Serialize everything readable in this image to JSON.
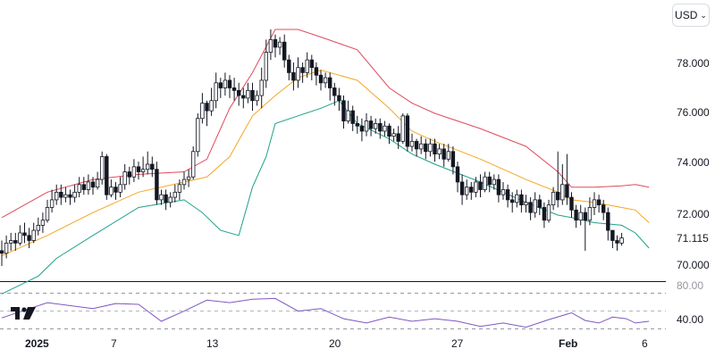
{
  "currency": {
    "label": "USD",
    "chevron_icon": "chevron-down-icon"
  },
  "logo": {
    "name": "tradingview-logo-icon"
  },
  "price_axis": {
    "ticks": [
      "78.000",
      "76.000",
      "74.000",
      "72.000",
      "70.000"
    ],
    "last_price": "71.115"
  },
  "rsi_axis": {
    "ticks": [
      "80.00",
      "40.00"
    ]
  },
  "time_axis": {
    "labels": [
      "2025",
      "7",
      "13",
      "20",
      "27",
      "Feb",
      "6"
    ]
  },
  "colors": {
    "up_candle": "#ffffff",
    "down_candle": "#131722",
    "upper_band": "#e04a5a",
    "middle_band": "#f5a623",
    "lower_band": "#1fa08a",
    "rsi_line": "#7e57c2",
    "axis_text": "#131722"
  },
  "chart_data": {
    "type": "candlestick",
    "price_range": [
      69.5,
      79.5
    ],
    "rsi_range": [
      30,
      90
    ],
    "candles": [
      [
        70.6,
        70.5,
        70.0,
        71.0
      ],
      [
        70.5,
        70.9,
        70.3,
        71.2
      ],
      [
        70.9,
        71.0,
        70.6,
        71.3
      ],
      [
        71.0,
        70.9,
        70.6,
        71.3
      ],
      [
        70.9,
        71.3,
        70.8,
        71.6
      ],
      [
        71.3,
        71.2,
        70.9,
        71.7
      ],
      [
        71.2,
        71.0,
        70.7,
        71.5
      ],
      [
        71.0,
        71.4,
        70.9,
        71.7
      ],
      [
        71.4,
        71.6,
        71.2,
        71.9
      ],
      [
        71.6,
        71.8,
        71.3,
        72.1
      ],
      [
        71.8,
        72.3,
        71.7,
        72.6
      ],
      [
        72.3,
        72.6,
        72.1,
        73.0
      ],
      [
        72.6,
        72.9,
        72.4,
        73.2
      ],
      [
        72.9,
        72.7,
        72.4,
        73.2
      ],
      [
        72.7,
        72.8,
        72.5,
        73.1
      ],
      [
        72.8,
        72.7,
        72.4,
        73.0
      ],
      [
        72.7,
        72.9,
        72.5,
        73.2
      ],
      [
        72.9,
        73.2,
        72.7,
        73.5
      ],
      [
        73.2,
        73.0,
        72.8,
        73.5
      ],
      [
        73.0,
        73.3,
        72.8,
        73.6
      ],
      [
        73.3,
        73.1,
        72.8,
        73.5
      ],
      [
        73.1,
        73.4,
        73.0,
        73.7
      ],
      [
        73.4,
        74.3,
        73.2,
        74.5
      ],
      [
        74.3,
        72.8,
        72.6,
        74.4
      ],
      [
        72.8,
        73.1,
        72.7,
        73.4
      ],
      [
        73.1,
        72.9,
        72.6,
        73.3
      ],
      [
        72.9,
        73.2,
        72.7,
        73.5
      ],
      [
        73.2,
        73.7,
        73.0,
        74.0
      ],
      [
        73.7,
        73.5,
        73.2,
        73.9
      ],
      [
        73.5,
        73.9,
        73.3,
        74.2
      ],
      [
        73.9,
        73.7,
        73.4,
        74.1
      ],
      [
        73.7,
        73.8,
        73.5,
        74.3
      ],
      [
        73.8,
        74.0,
        73.6,
        74.5
      ],
      [
        74.0,
        73.8,
        73.5,
        74.3
      ],
      [
        73.8,
        72.6,
        72.4,
        74.1
      ],
      [
        72.6,
        72.8,
        72.4,
        73.0
      ],
      [
        72.8,
        72.5,
        72.2,
        73.0
      ],
      [
        72.5,
        72.7,
        72.3,
        72.9
      ],
      [
        72.7,
        72.9,
        72.5,
        73.2
      ],
      [
        72.9,
        73.2,
        72.6,
        73.4
      ],
      [
        73.2,
        73.4,
        73.0,
        73.7
      ],
      [
        73.4,
        73.5,
        73.1,
        73.8
      ],
      [
        73.5,
        74.5,
        73.4,
        74.7
      ],
      [
        74.5,
        75.8,
        74.3,
        76.0
      ],
      [
        75.8,
        76.4,
        75.6,
        76.8
      ],
      [
        76.4,
        76.1,
        75.5,
        76.5
      ],
      [
        76.1,
        76.5,
        75.9,
        77.0
      ],
      [
        76.5,
        77.2,
        76.2,
        77.6
      ],
      [
        77.2,
        77.0,
        76.6,
        77.4
      ],
      [
        77.0,
        77.3,
        76.7,
        77.6
      ],
      [
        77.3,
        77.0,
        76.6,
        77.5
      ],
      [
        77.0,
        76.9,
        76.5,
        77.4
      ],
      [
        76.9,
        76.7,
        76.3,
        77.2
      ],
      [
        76.7,
        76.6,
        76.2,
        77.0
      ],
      [
        76.6,
        76.9,
        76.4,
        77.2
      ],
      [
        76.9,
        76.5,
        76.1,
        77.2
      ],
      [
        76.5,
        76.7,
        76.3,
        76.9
      ],
      [
        76.7,
        77.3,
        76.2,
        77.8
      ],
      [
        77.3,
        78.4,
        77.0,
        78.9
      ],
      [
        78.4,
        78.9,
        78.1,
        79.3
      ],
      [
        78.9,
        78.6,
        78.2,
        79.1
      ],
      [
        78.6,
        78.8,
        78.3,
        79.0
      ],
      [
        78.8,
        78.1,
        77.8,
        79.1
      ],
      [
        78.1,
        77.6,
        77.3,
        78.3
      ],
      [
        77.6,
        77.3,
        76.9,
        78.0
      ],
      [
        77.3,
        77.8,
        77.0,
        78.2
      ],
      [
        77.8,
        77.6,
        77.2,
        78.0
      ],
      [
        77.6,
        78.1,
        77.4,
        78.4
      ],
      [
        78.1,
        77.8,
        77.3,
        78.3
      ],
      [
        77.8,
        77.5,
        77.1,
        78.0
      ],
      [
        77.5,
        77.2,
        76.9,
        77.7
      ],
      [
        77.2,
        77.4,
        77.0,
        77.6
      ],
      [
        77.4,
        77.0,
        76.5,
        77.6
      ],
      [
        77.0,
        76.7,
        76.3,
        77.2
      ],
      [
        76.7,
        76.5,
        76.1,
        77.0
      ],
      [
        76.5,
        75.7,
        75.4,
        76.7
      ],
      [
        75.7,
        76.1,
        75.6,
        76.5
      ],
      [
        76.1,
        75.6,
        75.3,
        76.3
      ],
      [
        75.6,
        75.5,
        75.2,
        75.9
      ],
      [
        75.5,
        75.3,
        74.9,
        75.8
      ],
      [
        75.3,
        75.7,
        75.1,
        76.0
      ],
      [
        75.7,
        75.4,
        75.1,
        75.9
      ],
      [
        75.4,
        75.6,
        75.2,
        75.8
      ],
      [
        75.6,
        75.3,
        75.0,
        75.8
      ],
      [
        75.3,
        75.5,
        75.1,
        75.7
      ],
      [
        75.5,
        75.1,
        74.8,
        75.6
      ],
      [
        75.1,
        75.2,
        74.9,
        75.4
      ],
      [
        75.2,
        74.9,
        74.6,
        75.5
      ],
      [
        74.9,
        75.9,
        74.8,
        76.0
      ],
      [
        75.9,
        74.7,
        74.5,
        76.0
      ],
      [
        74.7,
        74.9,
        74.5,
        75.2
      ],
      [
        74.9,
        74.6,
        74.3,
        75.0
      ],
      [
        74.6,
        74.8,
        74.4,
        75.1
      ],
      [
        74.8,
        74.5,
        74.2,
        75.0
      ],
      [
        74.5,
        74.8,
        74.3,
        75.0
      ],
      [
        74.8,
        74.4,
        74.1,
        75.0
      ],
      [
        74.4,
        74.6,
        74.2,
        74.8
      ],
      [
        74.6,
        74.2,
        73.9,
        74.8
      ],
      [
        74.2,
        74.5,
        74.1,
        74.8
      ],
      [
        74.5,
        73.9,
        73.6,
        74.7
      ],
      [
        73.9,
        73.3,
        72.9,
        74.1
      ],
      [
        73.3,
        72.8,
        72.4,
        73.6
      ],
      [
        72.8,
        73.1,
        72.6,
        73.4
      ],
      [
        73.1,
        72.9,
        72.6,
        73.3
      ],
      [
        72.9,
        73.3,
        72.7,
        73.5
      ],
      [
        73.3,
        73.0,
        72.7,
        73.6
      ],
      [
        73.0,
        73.5,
        72.9,
        73.7
      ],
      [
        73.5,
        73.2,
        72.9,
        73.7
      ],
      [
        73.2,
        73.4,
        73.0,
        73.6
      ],
      [
        73.4,
        72.8,
        72.5,
        73.6
      ],
      [
        72.8,
        73.0,
        72.6,
        73.3
      ],
      [
        73.0,
        72.6,
        72.3,
        73.2
      ],
      [
        72.6,
        72.5,
        72.1,
        72.9
      ],
      [
        72.5,
        72.8,
        72.3,
        73.0
      ],
      [
        72.8,
        72.4,
        72.1,
        73.0
      ],
      [
        72.4,
        72.5,
        72.1,
        72.8
      ],
      [
        72.5,
        72.1,
        71.8,
        72.7
      ],
      [
        72.1,
        72.6,
        71.9,
        72.9
      ],
      [
        72.6,
        72.3,
        72.0,
        72.8
      ],
      [
        72.3,
        71.8,
        71.5,
        72.5
      ],
      [
        71.8,
        72.4,
        71.7,
        72.6
      ],
      [
        72.4,
        72.9,
        72.2,
        73.1
      ],
      [
        72.9,
        72.6,
        72.3,
        74.5
      ],
      [
        72.6,
        73.2,
        72.4,
        74.0
      ],
      [
        73.2,
        72.7,
        72.4,
        74.4
      ],
      [
        72.7,
        72.2,
        71.9,
        72.9
      ],
      [
        72.2,
        71.8,
        71.5,
        72.4
      ],
      [
        71.8,
        72.1,
        71.6,
        72.4
      ],
      [
        72.1,
        71.8,
        70.6,
        72.3
      ],
      [
        71.8,
        72.3,
        71.6,
        72.7
      ],
      [
        72.3,
        72.6,
        72.0,
        72.9
      ],
      [
        72.6,
        72.4,
        72.1,
        72.8
      ],
      [
        72.4,
        72.1,
        71.8,
        72.6
      ],
      [
        72.1,
        71.4,
        71.0,
        72.3
      ],
      [
        71.4,
        71.0,
        70.7,
        71.4
      ],
      [
        71.0,
        70.9,
        70.6,
        71.2
      ],
      [
        70.9,
        71.1,
        70.8,
        71.3
      ]
    ],
    "upper_band": [
      [
        0,
        71.9
      ],
      [
        10,
        72.9
      ],
      [
        20,
        73.4
      ],
      [
        30,
        73.6
      ],
      [
        40,
        73.7
      ],
      [
        45,
        74.2
      ],
      [
        50,
        76.2
      ],
      [
        55,
        77.6
      ],
      [
        60,
        79.3
      ],
      [
        65,
        79.3
      ],
      [
        70,
        79.0
      ],
      [
        78,
        78.5
      ],
      [
        85,
        77.0
      ],
      [
        90,
        76.4
      ],
      [
        95,
        76.0
      ],
      [
        105,
        75.4
      ],
      [
        115,
        74.7
      ],
      [
        122,
        73.7
      ],
      [
        125,
        73.1
      ],
      [
        130,
        73.1
      ],
      [
        136,
        73.15
      ],
      [
        139,
        73.2
      ],
      [
        142,
        73.1
      ]
    ],
    "middle_band": [
      [
        0,
        70.4
      ],
      [
        10,
        71.2
      ],
      [
        20,
        72.1
      ],
      [
        30,
        72.9
      ],
      [
        40,
        73.3
      ],
      [
        45,
        73.5
      ],
      [
        50,
        74.3
      ],
      [
        55,
        75.9
      ],
      [
        60,
        76.7
      ],
      [
        65,
        77.4
      ],
      [
        70,
        77.7
      ],
      [
        78,
        77.3
      ],
      [
        85,
        76.2
      ],
      [
        90,
        75.3
      ],
      [
        95,
        74.9
      ],
      [
        105,
        74.2
      ],
      [
        115,
        73.4
      ],
      [
        122,
        72.9
      ],
      [
        125,
        72.6
      ],
      [
        130,
        72.5
      ],
      [
        136,
        72.3
      ],
      [
        139,
        72.2
      ],
      [
        142,
        71.7
      ]
    ],
    "lower_band": [
      [
        0,
        68.9
      ],
      [
        8,
        69.6
      ],
      [
        12,
        70.3
      ],
      [
        20,
        71.2
      ],
      [
        30,
        72.3
      ],
      [
        40,
        72.6
      ],
      [
        44,
        72.1
      ],
      [
        48,
        71.4
      ],
      [
        52,
        71.2
      ],
      [
        55,
        73.1
      ],
      [
        58,
        74.3
      ],
      [
        60,
        75.6
      ],
      [
        65,
        75.9
      ],
      [
        70,
        76.2
      ],
      [
        74,
        76.5
      ],
      [
        78,
        75.6
      ],
      [
        85,
        75.0
      ],
      [
        90,
        74.4
      ],
      [
        95,
        74.0
      ],
      [
        105,
        73.3
      ],
      [
        115,
        72.5
      ],
      [
        122,
        72.0
      ],
      [
        125,
        71.9
      ],
      [
        130,
        71.7
      ],
      [
        136,
        71.6
      ],
      [
        139,
        71.3
      ],
      [
        142,
        70.7
      ]
    ],
    "rsi": [
      [
        0,
        44
      ],
      [
        10,
        62
      ],
      [
        20,
        55
      ],
      [
        25,
        61
      ],
      [
        30,
        60
      ],
      [
        35,
        40
      ],
      [
        40,
        52
      ],
      [
        45,
        65
      ],
      [
        50,
        62
      ],
      [
        55,
        66
      ],
      [
        60,
        67
      ],
      [
        65,
        52
      ],
      [
        70,
        55
      ],
      [
        75,
        43
      ],
      [
        80,
        38
      ],
      [
        85,
        45
      ],
      [
        90,
        40
      ],
      [
        95,
        43
      ],
      [
        100,
        40
      ],
      [
        105,
        34
      ],
      [
        110,
        38
      ],
      [
        115,
        33
      ],
      [
        120,
        42
      ],
      [
        125,
        50
      ],
      [
        128,
        41
      ],
      [
        131,
        38
      ],
      [
        134,
        45
      ],
      [
        137,
        43
      ],
      [
        139,
        38
      ],
      [
        142,
        40
      ]
    ]
  }
}
